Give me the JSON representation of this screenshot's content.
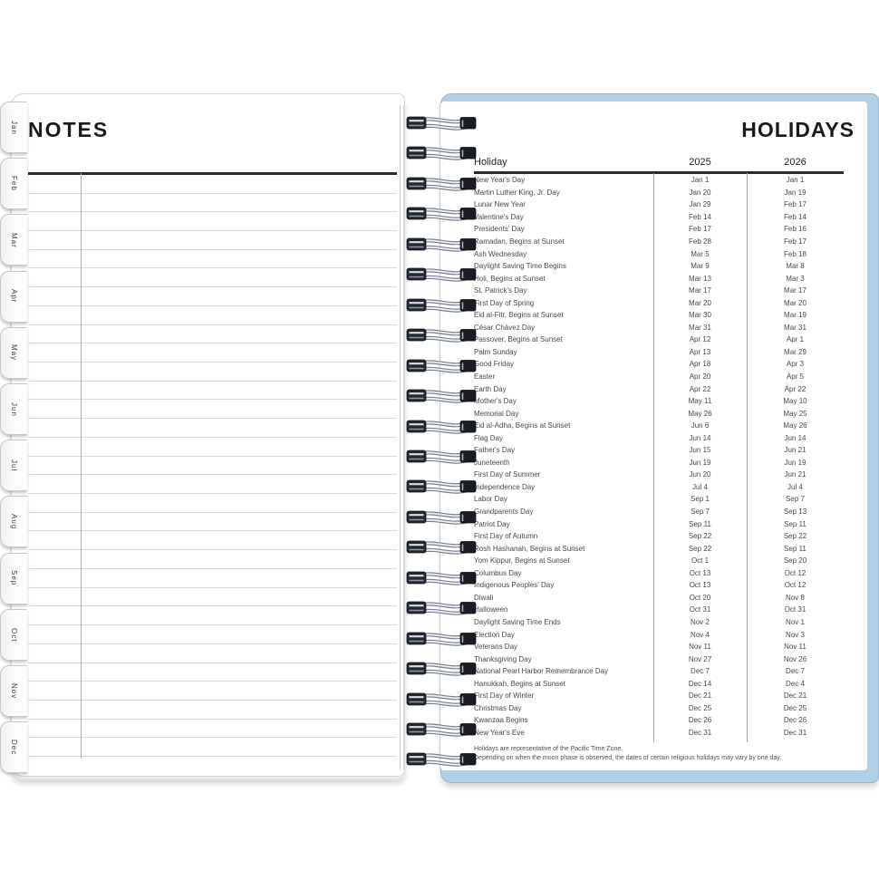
{
  "colors": {
    "cover_blue": "#b2d0e5",
    "binding_strip_blue": "#a6c9e0",
    "heavy_rule": "#2b2b2b",
    "ruled_line": "#d9d9d9",
    "margin_line": "#b3b3b3",
    "column_divider": "#9f9f9f",
    "text_primary": "#1b1b1b",
    "text_body": "#4a4a4a"
  },
  "left_page": {
    "title": "NOTES",
    "tabs": [
      "Jan",
      "Feb",
      "Mar",
      "Apr",
      "May",
      "Jun",
      "Jul",
      "Aug",
      "Sep",
      "Oct",
      "Nov",
      "Dec"
    ]
  },
  "right_page": {
    "title": "HOLIDAYS",
    "table": {
      "columns": [
        "Holiday",
        "2025",
        "2026"
      ],
      "rows": [
        [
          "New Year's Day",
          "Jan 1",
          "Jan 1"
        ],
        [
          "Martin Luther King, Jr. Day",
          "Jan 20",
          "Jan 19"
        ],
        [
          "Lunar New Year",
          "Jan 29",
          "Feb 17"
        ],
        [
          "Valentine's Day",
          "Feb 14",
          "Feb 14"
        ],
        [
          "Presidents' Day",
          "Feb 17",
          "Feb 16"
        ],
        [
          "Ramadan, Begins at Sunset",
          "Feb 28",
          "Feb 17"
        ],
        [
          "Ash Wednesday",
          "Mar 5",
          "Feb 18"
        ],
        [
          "Daylight Saving Time Begins",
          "Mar 9",
          "Mar 8"
        ],
        [
          "Holi, Begins at Sunset",
          "Mar 13",
          "Mar 3"
        ],
        [
          "St. Patrick's Day",
          "Mar 17",
          "Mar 17"
        ],
        [
          "First Day of Spring",
          "Mar 20",
          "Mar 20"
        ],
        [
          "Eid al-Fitr, Begins at Sunset",
          "Mar 30",
          "Mar 19"
        ],
        [
          "César Chávez Day",
          "Mar 31",
          "Mar 31"
        ],
        [
          "Passover, Begins at Sunset",
          "Apr 12",
          "Apr 1"
        ],
        [
          "Palm Sunday",
          "Apr 13",
          "Mar 29"
        ],
        [
          "Good Friday",
          "Apr 18",
          "Apr 3"
        ],
        [
          "Easter",
          "Apr 20",
          "Apr 5"
        ],
        [
          "Earth Day",
          "Apr 22",
          "Apr 22"
        ],
        [
          "Mother's Day",
          "May 11",
          "May 10"
        ],
        [
          "Memorial Day",
          "May 26",
          "May 25"
        ],
        [
          "Eid al-Adha, Begins at Sunset",
          "Jun 6",
          "May 26"
        ],
        [
          "Flag Day",
          "Jun 14",
          "Jun 14"
        ],
        [
          "Father's Day",
          "Jun 15",
          "Jun 21"
        ],
        [
          "Juneteenth",
          "Jun 19",
          "Jun 19"
        ],
        [
          "First Day of Summer",
          "Jun 20",
          "Jun 21"
        ],
        [
          "Independence Day",
          "Jul 4",
          "Jul 4"
        ],
        [
          "Labor Day",
          "Sep 1",
          "Sep 7"
        ],
        [
          "Grandparents Day",
          "Sep 7",
          "Sep 13"
        ],
        [
          "Patriot Day",
          "Sep 11",
          "Sep 11"
        ],
        [
          "First Day of Autumn",
          "Sep 22",
          "Sep 22"
        ],
        [
          "Rosh Hashanah, Begins at Sunset",
          "Sep 22",
          "Sep 11"
        ],
        [
          "Yom Kippur, Begins at Sunset",
          "Oct 1",
          "Sep 20"
        ],
        [
          "Columbus Day",
          "Oct 13",
          "Oct 12"
        ],
        [
          "Indigenous Peoples' Day",
          "Oct 13",
          "Oct 12"
        ],
        [
          "Diwali",
          "Oct 20",
          "Nov 8"
        ],
        [
          "Halloween",
          "Oct 31",
          "Oct 31"
        ],
        [
          "Daylight Saving Time Ends",
          "Nov 2",
          "Nov 1"
        ],
        [
          "Election Day",
          "Nov 4",
          "Nov 3"
        ],
        [
          "Veterans Day",
          "Nov 11",
          "Nov 11"
        ],
        [
          "Thanksgiving Day",
          "Nov 27",
          "Nov 26"
        ],
        [
          "National Pearl Harbor Remembrance Day",
          "Dec 7",
          "Dec 7"
        ],
        [
          "Hanukkah, Begins at Sunset",
          "Dec 14",
          "Dec 4"
        ],
        [
          "First Day of Winter",
          "Dec 21",
          "Dec 21"
        ],
        [
          "Christmas Day",
          "Dec 25",
          "Dec 25"
        ],
        [
          "Kwanzaa Begins",
          "Dec 26",
          "Dec 26"
        ],
        [
          "New Year's Eve",
          "Dec 31",
          "Dec 31"
        ]
      ]
    },
    "footnotes": [
      "Holidays are representative of the Pacific Time Zone.",
      "Depending on when the moon phase is observed, the dates of certain religious holidays may vary by one day."
    ]
  }
}
